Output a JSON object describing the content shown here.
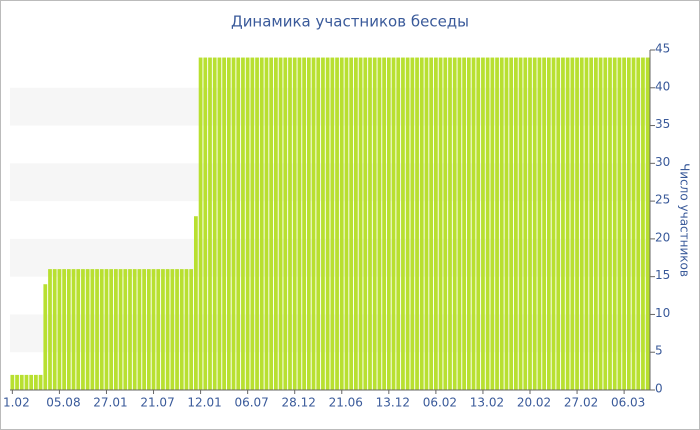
{
  "chart_data": {
    "type": "bar",
    "title": "Динамика участников беседы",
    "y_label": "Число участников",
    "color": "#b8e030",
    "grid": "bands",
    "ylim": [
      0,
      45
    ],
    "yticks": [
      0,
      5,
      10,
      15,
      20,
      25,
      30,
      35,
      40,
      45
    ],
    "categories": [
      "1.02",
      null,
      null,
      null,
      null,
      null,
      null,
      null,
      null,
      null,
      "05.08",
      null,
      null,
      null,
      null,
      null,
      null,
      null,
      null,
      null,
      "27.01",
      null,
      null,
      null,
      null,
      null,
      null,
      null,
      null,
      null,
      "21.07",
      null,
      null,
      null,
      null,
      null,
      null,
      null,
      null,
      null,
      "12.01",
      null,
      null,
      null,
      null,
      null,
      null,
      null,
      null,
      null,
      "06.07",
      null,
      null,
      null,
      null,
      null,
      null,
      null,
      null,
      null,
      "28.12",
      null,
      null,
      null,
      null,
      null,
      null,
      null,
      null,
      null,
      "21.06",
      null,
      null,
      null,
      null,
      null,
      null,
      null,
      null,
      null,
      "13.12",
      null,
      null,
      null,
      null,
      null,
      null,
      null,
      null,
      null,
      "06.02",
      null,
      null,
      null,
      null,
      null,
      null,
      null,
      null,
      null,
      "13.02",
      null,
      null,
      null,
      null,
      null,
      null,
      null,
      null,
      null,
      "20.02",
      null,
      null,
      null,
      null,
      null,
      null,
      null,
      null,
      null,
      "27.02",
      null,
      null,
      null,
      null,
      null,
      null,
      null,
      null,
      null,
      "06.03",
      null,
      null,
      null,
      null,
      null
    ],
    "values": [
      2,
      2,
      2,
      2,
      2,
      2,
      2,
      14,
      16,
      16,
      16,
      16,
      16,
      16,
      16,
      16,
      16,
      16,
      16,
      16,
      16,
      16,
      16,
      16,
      16,
      16,
      16,
      16,
      16,
      16,
      16,
      16,
      16,
      16,
      16,
      16,
      16,
      16,
      16,
      23,
      44,
      44,
      44,
      44,
      44,
      44,
      44,
      44,
      44,
      44,
      44,
      44,
      44,
      44,
      44,
      44,
      44,
      44,
      44,
      44,
      44,
      44,
      44,
      44,
      44,
      44,
      44,
      44,
      44,
      44,
      44,
      44,
      44,
      44,
      44,
      44,
      44,
      44,
      44,
      44,
      44,
      44,
      44,
      44,
      44,
      44,
      44,
      44,
      44,
      44,
      44,
      44,
      44,
      44,
      44,
      44,
      44,
      44,
      44,
      44,
      44,
      44,
      44,
      44,
      44,
      44,
      44,
      44,
      44,
      44,
      44,
      44,
      44,
      44,
      44,
      44,
      44,
      44,
      44,
      44,
      44,
      44,
      44,
      44,
      44,
      44,
      44,
      44,
      44,
      44,
      44,
      44,
      44,
      44,
      44,
      44
    ]
  }
}
